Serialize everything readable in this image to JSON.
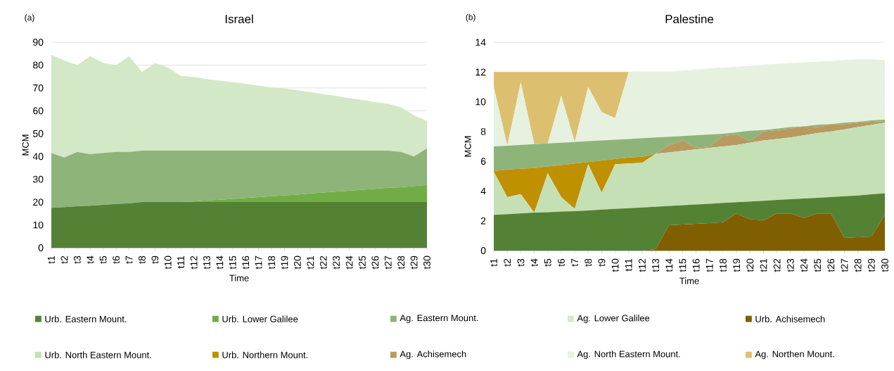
{
  "chart_data": [
    {
      "type": "area",
      "title": "Israel",
      "xlabel": "Time",
      "ylabel": "MCM",
      "annotations": [
        "(a)"
      ],
      "stacked": true,
      "grid": "y",
      "legend": "bottom",
      "categories": [
        "t1",
        "t2",
        "t3",
        "t4",
        "t5",
        "t6",
        "t7",
        "t8",
        "t9",
        "t10",
        "t11",
        "t12",
        "t13",
        "t14",
        "t15",
        "t16",
        "t17",
        "t18",
        "t19",
        "t20",
        "t21",
        "t22",
        "t23",
        "t24",
        "t25",
        "t26",
        "t27",
        "t28",
        "t29",
        "t30"
      ],
      "ylim": [
        0,
        90
      ],
      "yticks": [
        0,
        10,
        20,
        30,
        40,
        50,
        60,
        70,
        80,
        90
      ],
      "series": [
        {
          "name": "Urb. Eastern Mount.",
          "color": "#548235",
          "values": [
            17.5,
            17.8,
            18.2,
            18.4,
            18.8,
            19.2,
            19.5,
            20,
            20,
            20,
            20,
            20,
            20,
            20,
            20,
            20,
            20,
            20,
            20,
            20,
            20,
            20,
            20,
            20,
            20,
            20,
            20,
            20,
            20,
            20
          ]
        },
        {
          "name": "Urb. Lower Galilee",
          "color": "#70ad47",
          "values": [
            0,
            0,
            0,
            0,
            0,
            0,
            0,
            0,
            0,
            0,
            0,
            0.3,
            0.7,
            1.0,
            1.4,
            1.8,
            2.2,
            2.6,
            3.0,
            3.3,
            3.8,
            4.2,
            4.6,
            5.0,
            5.4,
            5.8,
            6.3,
            6.5,
            7.0,
            7.5
          ]
        },
        {
          "name": "Ag. Eastern Mount.",
          "color": "#8fb47a",
          "values": [
            24,
            21.7,
            23.8,
            22.6,
            22.7,
            22.8,
            22.5,
            22.5,
            22.5,
            22.5,
            22.5,
            22.2,
            21.8,
            21.5,
            21.1,
            20.7,
            20.3,
            19.9,
            19.5,
            19.2,
            18.7,
            18.3,
            17.9,
            17.5,
            17.1,
            16.7,
            16.2,
            15.5,
            13,
            16
          ]
        },
        {
          "name": "Ag. Lower Galilee",
          "color": "#d3e8c6",
          "values": [
            43,
            42.5,
            38,
            42.8,
            39.5,
            38,
            41.8,
            34.5,
            38.3,
            36.5,
            32.7,
            32.3,
            31.3,
            30.7,
            30,
            29.3,
            28.5,
            27.7,
            27.3,
            26.5,
            25.7,
            24.7,
            24,
            23,
            22.3,
            21.3,
            20.5,
            19.5,
            18,
            12
          ]
        }
      ]
    },
    {
      "type": "area",
      "title": "Palestine",
      "xlabel": "Time",
      "ylabel": "MCM",
      "annotations": [
        "(b)"
      ],
      "stacked": true,
      "grid": "y",
      "legend": "bottom",
      "categories": [
        "t1",
        "t2",
        "t3",
        "t4",
        "t5",
        "t6",
        "t7",
        "t8",
        "t9",
        "t10",
        "t11",
        "t12",
        "t13",
        "t14",
        "t15",
        "t16",
        "t17",
        "t18",
        "t19",
        "t20",
        "t21",
        "t22",
        "t23",
        "t24",
        "t25",
        "t26",
        "t27",
        "t28",
        "t29",
        "t30"
      ],
      "ylim": [
        0,
        14
      ],
      "yticks": [
        0,
        2,
        4,
        6,
        8,
        10,
        12,
        14
      ],
      "series": [
        {
          "name": "Urb. Achisemech",
          "color": "#7f5f00",
          "values": [
            0,
            0,
            0,
            0,
            0,
            0,
            0,
            0,
            0,
            0,
            0,
            0,
            0.1,
            1.7,
            1.75,
            1.8,
            1.85,
            1.9,
            2.5,
            2.1,
            2.05,
            2.5,
            2.5,
            2.2,
            2.5,
            2.5,
            0.85,
            0.9,
            0.95,
            2.4
          ]
        },
        {
          "name": "Urb. Eastern Mount.",
          "color": "#548235",
          "values": [
            2.4,
            2.45,
            2.5,
            2.55,
            2.58,
            2.62,
            2.65,
            2.7,
            2.75,
            2.8,
            2.85,
            2.9,
            2.85,
            1.3,
            1.3,
            1.3,
            1.3,
            1.3,
            0.75,
            1.2,
            1.3,
            0.9,
            0.95,
            1.3,
            1.05,
            1.1,
            2.8,
            2.8,
            2.83,
            1.45
          ]
        },
        {
          "name": "Urb. North Eastern Mount.",
          "color": "#c5e0b4",
          "values": [
            2.9,
            1.15,
            1.3,
            0,
            2.62,
            0.98,
            0.15,
            3.1,
            1.15,
            3.0,
            3.0,
            3.0,
            3.55,
            3.6,
            3.65,
            3.7,
            3.75,
            3.8,
            3.85,
            3.95,
            4.05,
            4.1,
            4.15,
            4.25,
            4.35,
            4.4,
            4.5,
            4.6,
            4.67,
            4.75
          ]
        },
        {
          "name": "Urb. Northern Mount.",
          "color": "#bf9000",
          "values": [
            0.05,
            1.85,
            1.7,
            3.0,
            0.45,
            2.15,
            3.05,
            0.15,
            2.15,
            0.35,
            0.4,
            0.4,
            0,
            0,
            0,
            0,
            0,
            0,
            0,
            0,
            0,
            0,
            0,
            0,
            0,
            0,
            0,
            0,
            0,
            0
          ]
        },
        {
          "name": "Ag. Achisemech",
          "color": "#b89a60",
          "values": [
            0,
            0,
            0,
            0,
            0,
            0,
            0,
            0,
            0,
            0,
            0,
            0,
            0,
            0.5,
            0.7,
            0.1,
            0.1,
            0.7,
            0.7,
            0.1,
            0.6,
            0.6,
            0.6,
            0.6,
            0.4,
            0.5,
            0.35,
            0.3,
            0.2,
            0.1
          ]
        },
        {
          "name": "Ag. Eastern Mount.",
          "color": "#8fb47a",
          "values": [
            1.65,
            1.6,
            1.6,
            1.6,
            1.55,
            1.5,
            1.45,
            1.4,
            1.35,
            1.3,
            1.25,
            1.25,
            1.1,
            0.55,
            0.3,
            0.85,
            0.8,
            0.15,
            0.15,
            0.7,
            0.1,
            0.1,
            0.1,
            0,
            0.15,
            0,
            0.1,
            0.05,
            0.1,
            0.1
          ]
        },
        {
          "name": "Ag. North Eastern Mount.",
          "color": "#e6f1df",
          "values": [
            4.0,
            0,
            4.2,
            0,
            0,
            3.15,
            0,
            3.65,
            1.9,
            1.45,
            4.5,
            4.45,
            4.4,
            4.35,
            4.4,
            4.4,
            4.45,
            4.45,
            4.4,
            4.35,
            4.4,
            4.35,
            4.3,
            4.3,
            4.25,
            4.25,
            4.2,
            4.2,
            4.1,
            4.0
          ]
        },
        {
          "name": "Ag. Northen Mount.",
          "color": "#dcc070",
          "values": [
            1.0,
            4.95,
            0.7,
            4.85,
            4.8,
            1.6,
            4.7,
            1.0,
            2.7,
            3.1,
            0,
            0,
            0,
            0,
            0,
            0,
            0,
            0,
            0,
            0,
            0,
            0,
            0,
            0,
            0,
            0,
            0,
            0,
            0,
            0
          ]
        }
      ]
    }
  ]
}
